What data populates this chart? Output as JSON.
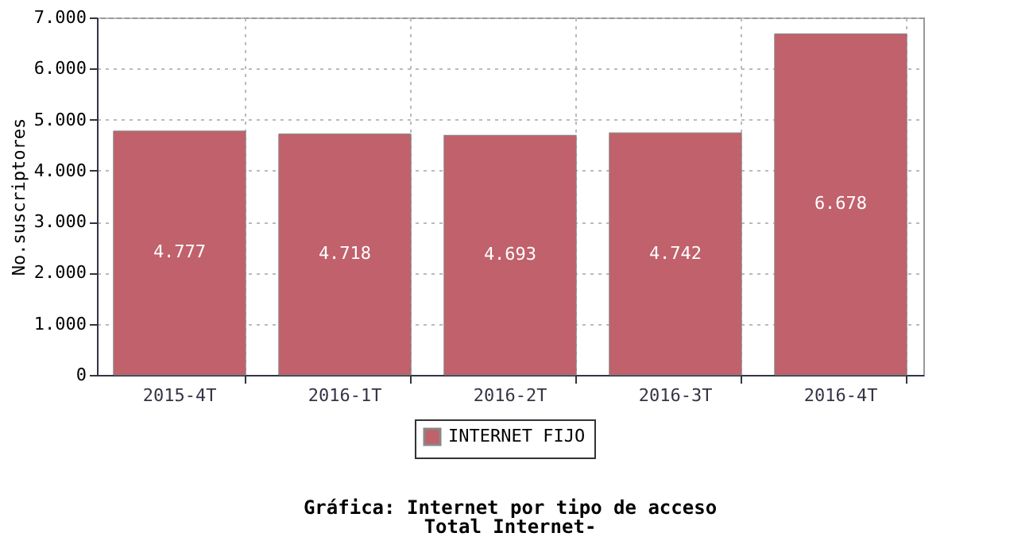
{
  "chart_data": {
    "type": "bar",
    "title": "Gráfica: Internet por tipo de acceso",
    "subtitle": "Total Internet-",
    "ylabel": "No.suscriptores",
    "categories": [
      "2015-4T",
      "2016-1T",
      "2016-2T",
      "2016-3T",
      "2016-4T"
    ],
    "series": [
      {
        "name": "INTERNET FIJO",
        "color": "#c0616b",
        "values": [
          4777,
          4718,
          4693,
          4742,
          6678
        ],
        "value_labels": [
          "4.777",
          "4.718",
          "4.693",
          "4.742",
          "6.678"
        ]
      }
    ],
    "ylim": [
      0,
      7000
    ],
    "yticks": [
      0,
      {
        "value": 1000,
        "label": "1.000"
      },
      {
        "value": 2000,
        "label": "2.000"
      },
      {
        "value": 3000,
        "label": "3.000"
      },
      {
        "value": 4000,
        "label": "4.000"
      },
      {
        "value": 5000,
        "label": "5.000"
      },
      {
        "value": 6000,
        "label": "6.000"
      },
      {
        "value": 7000,
        "label": "7.000"
      }
    ],
    "grid": true,
    "legend": "bottom"
  }
}
